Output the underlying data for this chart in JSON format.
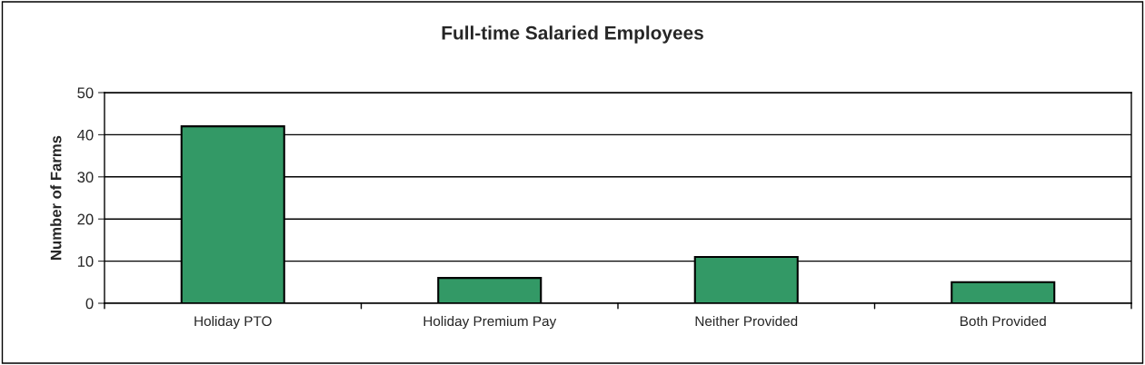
{
  "chart_data": {
    "type": "bar",
    "title": "Full-time Salaried Employees",
    "ylabel": "Number of Farms",
    "categories": [
      "Holiday PTO",
      "Holiday Premium Pay",
      "Neither Provided",
      "Both Provided"
    ],
    "values": [
      42,
      6,
      11,
      5
    ],
    "color": "#339966",
    "ylim": [
      0,
      50
    ],
    "yticks": [
      0,
      10,
      20,
      30,
      40,
      50
    ],
    "grid": "y",
    "legend": false
  }
}
